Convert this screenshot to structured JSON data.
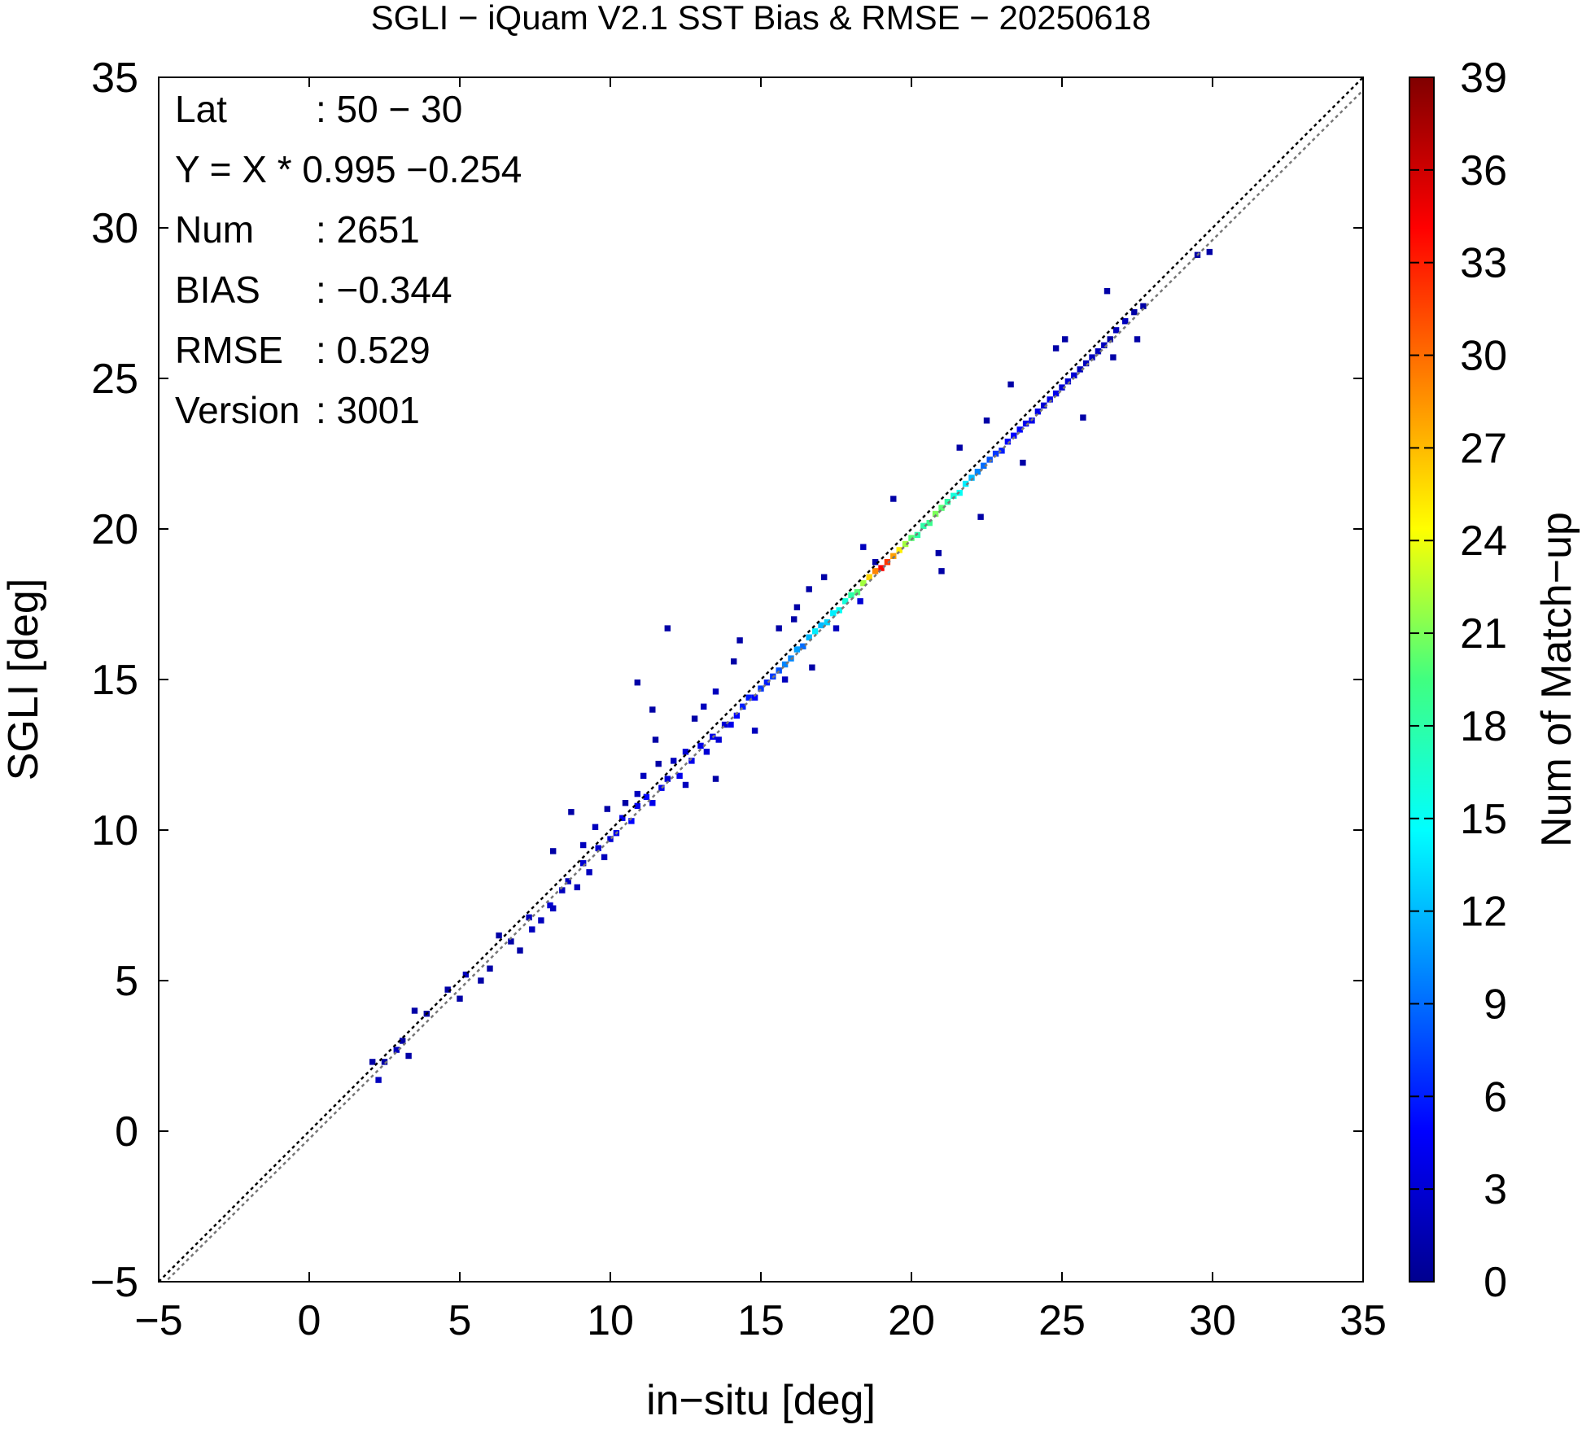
{
  "chart_data": {
    "type": "heatmap",
    "title": "SGLI − iQuam V2.1 SST Bias & RMSE  − 20250618",
    "xlabel": "in−situ [deg]",
    "ylabel": "SGLI [deg]",
    "xlim": [
      -5,
      35
    ],
    "ylim": [
      -5,
      35
    ],
    "x_ticks": [
      "−5",
      "0",
      "5",
      "10",
      "15",
      "20",
      "25",
      "30",
      "35"
    ],
    "y_ticks": [
      "−5",
      "0",
      "5",
      "10",
      "15",
      "20",
      "25",
      "30",
      "35"
    ],
    "colorbar": {
      "label": "Num of Match−up",
      "range": [
        0,
        39
      ],
      "ticks": [
        "0",
        "3",
        "6",
        "9",
        "12",
        "15",
        "18",
        "21",
        "24",
        "27",
        "30",
        "33",
        "36",
        "39"
      ]
    },
    "stats": [
      {
        "label": "Lat",
        "value": ": 50 − 30"
      },
      {
        "label": "Y = X * 0.995 −0.254",
        "value": ""
      },
      {
        "label": "Num",
        "value": ": 2651"
      },
      {
        "label": "BIAS",
        "value": ": −0.344"
      },
      {
        "label": "RMSE",
        "value": ": 0.529"
      },
      {
        "label": "Version",
        "value": ": 3001"
      }
    ],
    "lines": [
      {
        "style": "dotted",
        "color": "#000000",
        "slope": 1,
        "intercept": 0
      },
      {
        "style": "dotted",
        "color": "#777777",
        "slope": 0.995,
        "intercept": -0.254
      }
    ],
    "bin_size": 0.2,
    "points": [
      [
        2.0,
        2.2,
        1
      ],
      [
        2.2,
        1.6,
        2
      ],
      [
        2.4,
        2.2,
        1
      ],
      [
        2.8,
        2.6,
        2
      ],
      [
        3.0,
        2.9,
        1
      ],
      [
        3.2,
        2.4,
        1
      ],
      [
        3.4,
        3.9,
        1
      ],
      [
        3.8,
        3.8,
        1
      ],
      [
        4.5,
        4.6,
        1
      ],
      [
        4.9,
        4.3,
        1
      ],
      [
        5.1,
        5.1,
        2
      ],
      [
        5.6,
        4.9,
        1
      ],
      [
        5.9,
        5.3,
        1
      ],
      [
        6.2,
        6.4,
        1
      ],
      [
        6.6,
        6.2,
        1
      ],
      [
        6.9,
        5.9,
        1
      ],
      [
        7.2,
        7.0,
        2
      ],
      [
        7.3,
        6.6,
        2
      ],
      [
        7.6,
        6.9,
        2
      ],
      [
        7.9,
        7.4,
        3
      ],
      [
        8.0,
        7.3,
        2
      ],
      [
        8.3,
        7.9,
        2
      ],
      [
        8.5,
        8.2,
        2
      ],
      [
        8.8,
        8.0,
        2
      ],
      [
        8.0,
        9.2,
        1
      ],
      [
        8.6,
        10.5,
        1
      ],
      [
        9.0,
        8.8,
        3
      ],
      [
        9.2,
        8.5,
        2
      ],
      [
        9.5,
        9.3,
        3
      ],
      [
        9.7,
        9.0,
        2
      ],
      [
        9.9,
        9.6,
        3
      ],
      [
        10.1,
        9.8,
        4
      ],
      [
        10.3,
        10.3,
        4
      ],
      [
        10.6,
        10.2,
        5
      ],
      [
        10.8,
        10.7,
        4
      ],
      [
        11.1,
        11.0,
        5
      ],
      [
        11.3,
        10.8,
        4
      ],
      [
        11.6,
        11.3,
        4
      ],
      [
        11.8,
        11.6,
        3
      ],
      [
        12.0,
        12.2,
        2
      ],
      [
        12.2,
        11.7,
        4
      ],
      [
        12.4,
        12.5,
        3
      ],
      [
        12.6,
        12.2,
        4
      ],
      [
        12.9,
        12.7,
        4
      ],
      [
        13.1,
        12.5,
        3
      ],
      [
        13.3,
        13.0,
        4
      ],
      [
        13.5,
        12.9,
        3
      ],
      [
        13.7,
        13.4,
        3
      ],
      [
        13.9,
        13.4,
        4
      ],
      [
        14.1,
        13.7,
        5
      ],
      [
        14.3,
        14.0,
        6
      ],
      [
        14.5,
        14.3,
        6
      ],
      [
        14.7,
        14.3,
        5
      ],
      [
        14.9,
        14.6,
        7
      ],
      [
        15.1,
        14.8,
        6
      ],
      [
        15.3,
        15.0,
        7
      ],
      [
        15.5,
        15.2,
        8
      ],
      [
        15.7,
        15.4,
        10
      ],
      [
        15.9,
        15.6,
        10
      ],
      [
        16.1,
        15.9,
        11
      ],
      [
        16.3,
        16.0,
        9
      ],
      [
        16.5,
        16.3,
        12
      ],
      [
        16.7,
        16.5,
        14
      ],
      [
        16.9,
        16.7,
        12
      ],
      [
        17.1,
        16.8,
        13
      ],
      [
        17.3,
        17.1,
        14
      ],
      [
        17.5,
        17.2,
        15
      ],
      [
        17.7,
        17.5,
        16
      ],
      [
        17.9,
        17.7,
        18
      ],
      [
        18.1,
        17.8,
        20
      ],
      [
        18.3,
        18.1,
        22
      ],
      [
        18.5,
        18.3,
        26
      ],
      [
        18.7,
        18.5,
        29
      ],
      [
        18.9,
        18.6,
        34
      ],
      [
        19.1,
        18.8,
        32
      ],
      [
        19.3,
        19.0,
        28
      ],
      [
        19.5,
        19.2,
        25
      ],
      [
        19.7,
        19.4,
        22
      ],
      [
        19.9,
        19.6,
        20
      ],
      [
        20.1,
        19.7,
        18
      ],
      [
        20.3,
        20.0,
        18
      ],
      [
        20.5,
        20.1,
        19
      ],
      [
        20.7,
        20.4,
        21
      ],
      [
        20.9,
        20.6,
        20
      ],
      [
        21.1,
        20.8,
        18
      ],
      [
        21.3,
        21.0,
        16
      ],
      [
        21.5,
        21.1,
        15
      ],
      [
        21.7,
        21.4,
        14
      ],
      [
        21.9,
        21.6,
        12
      ],
      [
        22.1,
        21.8,
        10
      ],
      [
        22.3,
        22.0,
        9
      ],
      [
        22.5,
        22.2,
        8
      ],
      [
        22.7,
        22.4,
        7
      ],
      [
        22.9,
        22.5,
        6
      ],
      [
        23.1,
        22.8,
        5
      ],
      [
        23.3,
        23.0,
        5
      ],
      [
        23.5,
        23.2,
        5
      ],
      [
        23.7,
        23.4,
        4
      ],
      [
        23.9,
        23.5,
        4
      ],
      [
        24.1,
        23.8,
        4
      ],
      [
        24.3,
        24.0,
        3
      ],
      [
        24.5,
        24.2,
        4
      ],
      [
        24.7,
        24.4,
        4
      ],
      [
        24.9,
        24.6,
        3
      ],
      [
        25.1,
        24.8,
        3
      ],
      [
        25.3,
        25.0,
        3
      ],
      [
        25.5,
        25.2,
        2
      ],
      [
        25.7,
        25.4,
        2
      ],
      [
        25.9,
        25.6,
        2
      ],
      [
        26.1,
        25.8,
        2
      ],
      [
        26.3,
        26.0,
        2
      ],
      [
        26.5,
        26.2,
        1
      ],
      [
        26.7,
        26.5,
        2
      ],
      [
        27.0,
        26.8,
        2
      ],
      [
        27.3,
        27.1,
        1
      ],
      [
        27.6,
        27.3,
        1
      ],
      [
        29.4,
        29.0,
        1
      ],
      [
        29.8,
        29.1,
        1
      ],
      [
        26.4,
        27.8,
        1
      ],
      [
        27.4,
        26.2,
        1
      ],
      [
        26.6,
        25.6,
        1
      ],
      [
        25.0,
        26.2,
        1
      ],
      [
        24.7,
        25.9,
        1
      ],
      [
        25.6,
        23.6,
        1
      ],
      [
        23.2,
        24.7,
        1
      ],
      [
        23.6,
        22.1,
        1
      ],
      [
        22.4,
        23.5,
        1
      ],
      [
        21.5,
        22.6,
        1
      ],
      [
        22.2,
        20.3,
        1
      ],
      [
        20.8,
        19.1,
        1
      ],
      [
        19.3,
        20.9,
        1
      ],
      [
        20.9,
        18.5,
        1
      ],
      [
        18.7,
        18.8,
        1
      ],
      [
        18.3,
        19.3,
        2
      ],
      [
        18.2,
        17.5,
        3
      ],
      [
        17.0,
        18.3,
        1
      ],
      [
        16.5,
        17.9,
        1
      ],
      [
        16.1,
        17.3,
        1
      ],
      [
        17.4,
        16.6,
        2
      ],
      [
        16.0,
        16.9,
        1
      ],
      [
        15.5,
        16.6,
        1
      ],
      [
        16.6,
        15.3,
        1
      ],
      [
        15.7,
        14.9,
        2
      ],
      [
        14.2,
        16.2,
        1
      ],
      [
        14.0,
        15.5,
        1
      ],
      [
        11.8,
        16.6,
        1
      ],
      [
        10.8,
        14.8,
        1
      ],
      [
        13.4,
        14.5,
        2
      ],
      [
        13.0,
        14.0,
        2
      ],
      [
        14.7,
        13.2,
        2
      ],
      [
        12.7,
        13.6,
        1
      ],
      [
        11.3,
        13.9,
        1
      ],
      [
        11.4,
        12.9,
        1
      ],
      [
        11.5,
        12.1,
        1
      ],
      [
        12.4,
        11.4,
        2
      ],
      [
        13.4,
        11.6,
        1
      ],
      [
        11.0,
        11.7,
        2
      ],
      [
        10.8,
        11.1,
        2
      ],
      [
        10.4,
        10.8,
        1
      ],
      [
        9.8,
        10.6,
        1
      ],
      [
        9.4,
        10.0,
        2
      ],
      [
        9.0,
        9.4,
        2
      ]
    ]
  }
}
